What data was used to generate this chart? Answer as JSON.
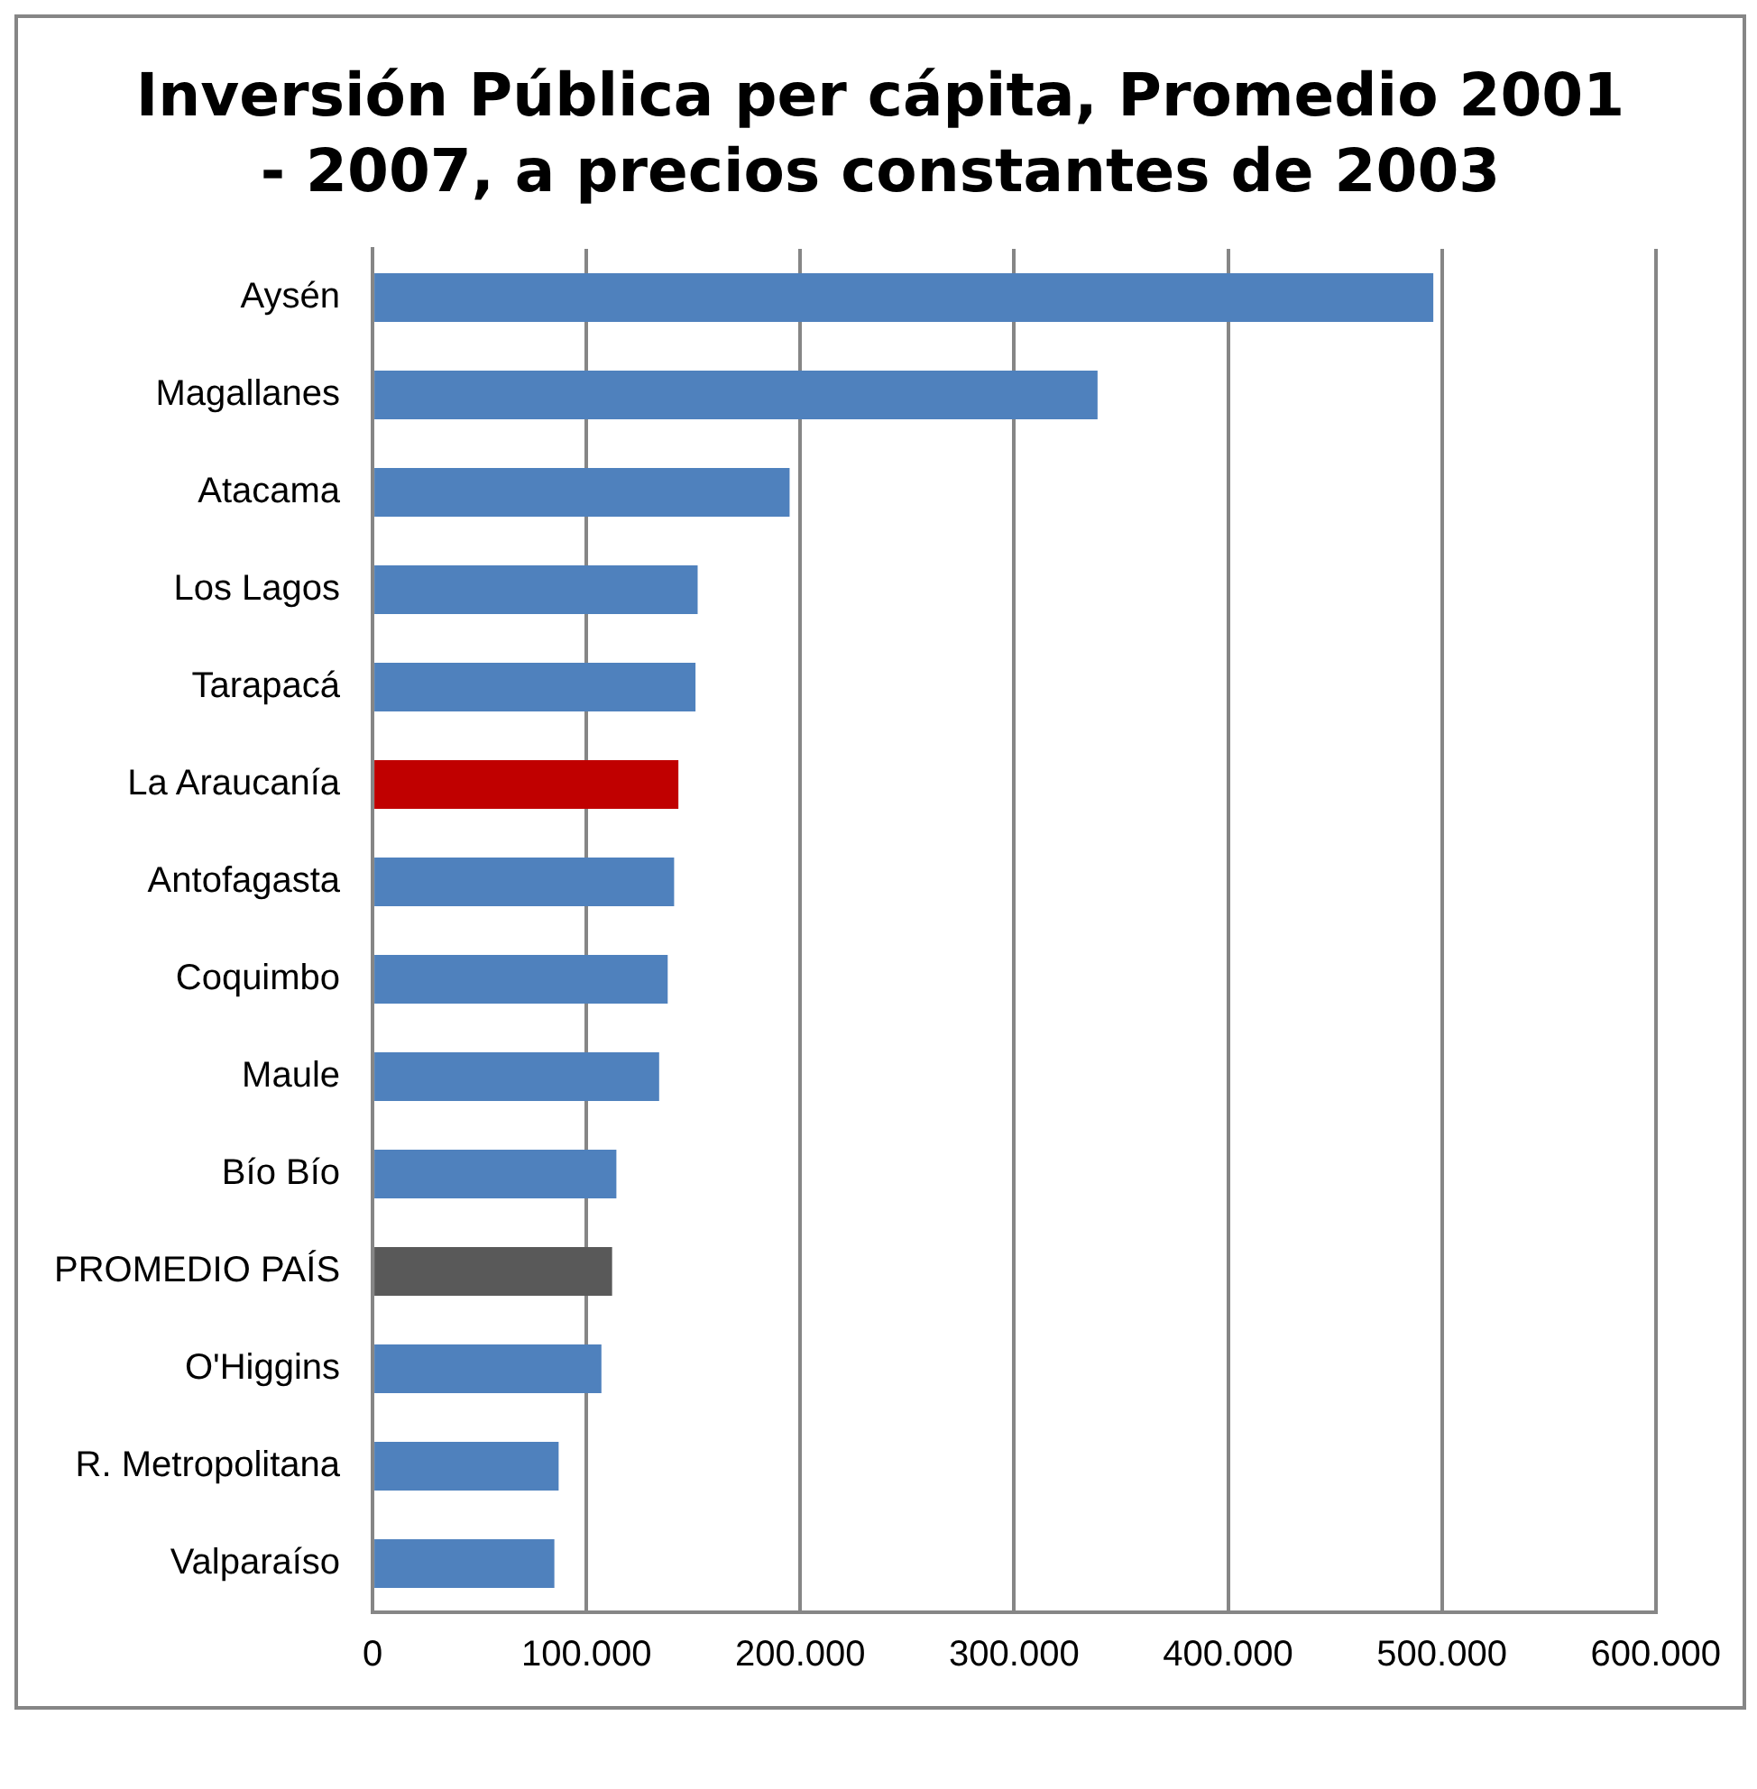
{
  "chart_data": {
    "type": "bar",
    "orientation": "horizontal",
    "title": "Inversión Pública per cápita, Promedio 2001 - 2007, a precios constantes de 2003",
    "categories": [
      "Aysén",
      "Magallanes",
      "Atacama",
      "Los Lagos",
      "Tarapacá",
      "La Araucanía",
      "Antofagasta",
      "Coquimbo",
      "Maule",
      "Bío Bío",
      "PROMEDIO PAÍS",
      "O'Higgins",
      "R. Metropolitana",
      "Valparaíso"
    ],
    "values": [
      496000,
      339000,
      195000,
      152000,
      151000,
      143000,
      141000,
      138000,
      134000,
      114000,
      112000,
      107000,
      87000,
      85000
    ],
    "colors": [
      "#4f81bd",
      "#4f81bd",
      "#4f81bd",
      "#4f81bd",
      "#4f81bd",
      "#c00000",
      "#4f81bd",
      "#4f81bd",
      "#4f81bd",
      "#4f81bd",
      "#595959",
      "#4f81bd",
      "#4f81bd",
      "#4f81bd"
    ],
    "xlim": [
      0,
      600000
    ],
    "xticks": [
      0,
      {
        "value": 100000,
        "label": "100.000"
      },
      {
        "value": 200000,
        "label": "200.000"
      },
      {
        "value": 300000,
        "label": "300.000"
      },
      {
        "value": 400000,
        "label": "400.000"
      },
      {
        "value": 500000,
        "label": "500.000"
      },
      {
        "value": 600000,
        "label": "600.000"
      }
    ],
    "grid": "x",
    "legend": false
  }
}
